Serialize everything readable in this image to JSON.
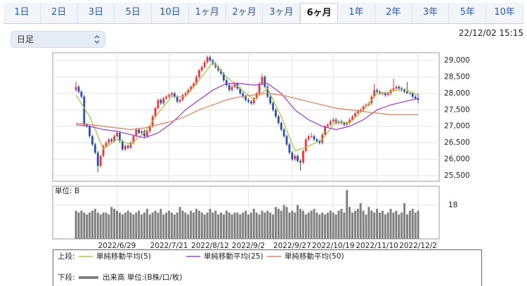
{
  "tabs": {
    "items": [
      "1日",
      "2日",
      "3日",
      "5日",
      "10日",
      "1ヶ月",
      "2ヶ月",
      "3ヶ月",
      "6ヶ月",
      "1年",
      "2年",
      "3年",
      "5年",
      "10年"
    ],
    "selected": 8
  },
  "controls": {
    "interval": "日足",
    "timestamp": "22/12/02 15:15"
  },
  "chart_data": [
    {
      "type": "candlestick",
      "legend_label": "上段:",
      "up_color": "#e8383d",
      "down_color": "#2a4fb0",
      "xlim": [
        -8.5,
        132.7
      ],
      "ylim": [
        25330,
        29235
      ],
      "yticks": [
        {
          "value": 25500,
          "label": "25,500"
        },
        {
          "value": 26000,
          "label": "26,000"
        },
        {
          "value": 26500,
          "label": "26,500"
        },
        {
          "value": 27000,
          "label": "27,000"
        },
        {
          "value": 27500,
          "label": "27,500"
        },
        {
          "value": 28000,
          "label": "28,000"
        },
        {
          "value": 28500,
          "label": "28,500"
        },
        {
          "value": 29000,
          "label": "29,000"
        }
      ],
      "grid": true,
      "candles": [
        [
          28100,
          28350,
          28050,
          28200
        ],
        [
          28200,
          28250,
          28000,
          28050
        ],
        [
          28050,
          28100,
          27850,
          27900
        ],
        [
          27900,
          27950,
          27000,
          27050
        ],
        [
          27050,
          27100,
          26950,
          27000
        ],
        [
          27000,
          27050,
          26650,
          26700
        ],
        [
          26700,
          26750,
          26400,
          26450
        ],
        [
          26450,
          26500,
          26150,
          26200
        ],
        [
          26200,
          26250,
          25600,
          25800
        ],
        [
          25800,
          26150,
          25750,
          26100
        ],
        [
          26100,
          26450,
          26050,
          26400
        ],
        [
          26400,
          26550,
          26350,
          26500
        ],
        [
          26500,
          26650,
          26450,
          26600
        ],
        [
          26600,
          26650,
          26500,
          26550
        ],
        [
          26550,
          26750,
          26500,
          26700
        ],
        [
          26700,
          26850,
          26650,
          26800
        ],
        [
          26800,
          26850,
          26500,
          26550
        ],
        [
          26550,
          26600,
          26250,
          26300
        ],
        [
          26300,
          26450,
          26250,
          26400
        ],
        [
          26400,
          26450,
          26300,
          26350
        ],
        [
          26350,
          26550,
          26300,
          26500
        ],
        [
          26500,
          26750,
          26450,
          26700
        ],
        [
          26700,
          26950,
          26650,
          26900
        ],
        [
          26900,
          26950,
          26750,
          26800
        ],
        [
          26800,
          26900,
          26750,
          26850
        ],
        [
          26850,
          26900,
          26650,
          26700
        ],
        [
          26700,
          26900,
          26650,
          26850
        ],
        [
          26850,
          27050,
          26800,
          27000
        ],
        [
          27000,
          27350,
          26950,
          27300
        ],
        [
          27300,
          27600,
          27250,
          27550
        ],
        [
          27550,
          27850,
          27500,
          27800
        ],
        [
          27800,
          27850,
          27650,
          27700
        ],
        [
          27700,
          27900,
          27650,
          27850
        ],
        [
          27850,
          27950,
          27800,
          27900
        ],
        [
          27900,
          28000,
          27850,
          27950
        ],
        [
          27950,
          28050,
          27900,
          28000
        ],
        [
          28000,
          28050,
          27850,
          27900
        ],
        [
          27900,
          27950,
          27700,
          27750
        ],
        [
          27750,
          27850,
          27700,
          27800
        ],
        [
          27800,
          28000,
          27750,
          27950
        ],
        [
          27950,
          28050,
          27900,
          28000
        ],
        [
          28000,
          28150,
          27950,
          28100
        ],
        [
          28100,
          28250,
          28050,
          28200
        ],
        [
          28200,
          28350,
          28150,
          28300
        ],
        [
          28300,
          28550,
          28250,
          28500
        ],
        [
          28500,
          28750,
          28450,
          28700
        ],
        [
          28700,
          28850,
          28650,
          28800
        ],
        [
          28800,
          29000,
          28750,
          28950
        ],
        [
          28950,
          29150,
          28900,
          29100
        ],
        [
          29100,
          29150,
          28950,
          29000
        ],
        [
          29000,
          29050,
          28850,
          28900
        ],
        [
          28900,
          28950,
          28750,
          28800
        ],
        [
          28800,
          28850,
          28650,
          28700
        ],
        [
          28700,
          28750,
          28550,
          28600
        ],
        [
          28600,
          28650,
          28350,
          28400
        ],
        [
          28400,
          28450,
          28200,
          28250
        ],
        [
          28250,
          28300,
          28050,
          28100
        ],
        [
          28100,
          28250,
          28050,
          28200
        ],
        [
          28200,
          28350,
          28150,
          28300
        ],
        [
          28300,
          28350,
          28100,
          28150
        ],
        [
          28150,
          28200,
          27950,
          28000
        ],
        [
          28000,
          28050,
          27850,
          27900
        ],
        [
          27900,
          27950,
          27750,
          27800
        ],
        [
          27800,
          27850,
          27700,
          27750
        ],
        [
          27750,
          27800,
          27650,
          27700
        ],
        [
          27700,
          27900,
          27650,
          27850
        ],
        [
          27850,
          28050,
          27800,
          28000
        ],
        [
          28000,
          28350,
          27950,
          28300
        ],
        [
          28300,
          28600,
          28250,
          28500
        ],
        [
          28500,
          28550,
          28150,
          28200
        ],
        [
          28200,
          28250,
          27850,
          27900
        ],
        [
          27900,
          27950,
          27650,
          27700
        ],
        [
          27700,
          27750,
          27450,
          27500
        ],
        [
          27500,
          27550,
          27250,
          27300
        ],
        [
          27300,
          27350,
          27050,
          27100
        ],
        [
          27100,
          27150,
          26850,
          26900
        ],
        [
          26900,
          26950,
          26650,
          26700
        ],
        [
          26700,
          26750,
          26400,
          26450
        ],
        [
          26450,
          26500,
          26150,
          26200
        ],
        [
          26200,
          26250,
          25950,
          26000
        ],
        [
          26000,
          26150,
          25950,
          26100
        ],
        [
          26100,
          26150,
          25900,
          25950
        ],
        [
          25950,
          26000,
          25650,
          25900
        ],
        [
          25900,
          26300,
          25850,
          26250
        ],
        [
          26250,
          26650,
          26200,
          26600
        ],
        [
          26600,
          26750,
          26550,
          26700
        ],
        [
          26700,
          26800,
          26650,
          26700
        ],
        [
          26700,
          26750,
          26550,
          26600
        ],
        [
          26600,
          26650,
          26500,
          26550
        ],
        [
          26550,
          26600,
          26450,
          26500
        ],
        [
          26500,
          26800,
          26450,
          26750
        ],
        [
          26750,
          27050,
          26700,
          27000
        ],
        [
          27000,
          27100,
          26950,
          27050
        ],
        [
          27050,
          27200,
          27000,
          27150
        ],
        [
          27150,
          27250,
          27100,
          27200
        ],
        [
          27200,
          27250,
          27050,
          27100
        ],
        [
          27100,
          27200,
          27050,
          27150
        ],
        [
          27150,
          27200,
          27050,
          27100
        ],
        [
          27100,
          27150,
          27000,
          27050
        ],
        [
          27050,
          27150,
          27000,
          27100
        ],
        [
          27100,
          27250,
          27050,
          27200
        ],
        [
          27200,
          27350,
          27150,
          27300
        ],
        [
          27300,
          27450,
          27250,
          27400
        ],
        [
          27400,
          27500,
          27350,
          27450
        ],
        [
          27450,
          27550,
          27400,
          27500
        ],
        [
          27500,
          27650,
          27450,
          27600
        ],
        [
          27600,
          27700,
          27550,
          27650
        ],
        [
          27650,
          27750,
          27600,
          27700
        ],
        [
          27700,
          27950,
          27650,
          27900
        ],
        [
          27900,
          28300,
          27850,
          28100
        ],
        [
          28100,
          28150,
          28000,
          28050
        ],
        [
          28050,
          28100,
          27950,
          28000
        ],
        [
          28000,
          28050,
          27950,
          28000
        ],
        [
          28000,
          28050,
          27900,
          27950
        ],
        [
          27950,
          28050,
          27900,
          28000
        ],
        [
          28000,
          28150,
          27950,
          28100
        ],
        [
          28100,
          28450,
          28050,
          28150
        ],
        [
          28150,
          28250,
          28100,
          28200
        ],
        [
          28200,
          28250,
          28100,
          28150
        ],
        [
          28150,
          28200,
          28050,
          28100
        ],
        [
          28100,
          28150,
          28000,
          28050
        ],
        [
          28050,
          28350,
          28000,
          28000
        ],
        [
          28000,
          28050,
          27950,
          28000
        ],
        [
          28000,
          28050,
          27850,
          27900
        ],
        [
          27900,
          27950,
          27800,
          27850
        ],
        [
          27850,
          28000,
          27700,
          27800
        ]
      ],
      "series": [
        {
          "name": "単純移動平均(5)",
          "color": "#a5c83c",
          "x": [
            0,
            5,
            10,
            15,
            20,
            25,
            30,
            35,
            40,
            45,
            50,
            55,
            60,
            65,
            70,
            75,
            80,
            85,
            90,
            95,
            100,
            105,
            110,
            115,
            120,
            125
          ],
          "values": [
            27950,
            27300,
            26300,
            26600,
            26450,
            26800,
            27400,
            27900,
            27900,
            28400,
            28950,
            28500,
            28150,
            27800,
            28150,
            27300,
            26250,
            26400,
            26600,
            27150,
            27100,
            27500,
            28000,
            28050,
            28130,
            27950
          ]
        },
        {
          "name": "単純移動平均(25)",
          "color": "#a146d4",
          "x": [
            0,
            5,
            10,
            15,
            20,
            25,
            30,
            35,
            40,
            45,
            50,
            55,
            60,
            65,
            70,
            75,
            80,
            85,
            90,
            95,
            100,
            105,
            110,
            115,
            120,
            125
          ],
          "values": [
            27050,
            27000,
            26900,
            26850,
            26750,
            26650,
            26800,
            27100,
            27500,
            27800,
            28100,
            28300,
            28300,
            28250,
            28300,
            28000,
            27500,
            27200,
            27000,
            26900,
            27000,
            27200,
            27500,
            27650,
            27750,
            27850
          ]
        },
        {
          "name": "単純移動平均(50)",
          "color": "#e3845e",
          "x": [
            0,
            5,
            10,
            15,
            20,
            25,
            30,
            35,
            40,
            45,
            50,
            55,
            60,
            65,
            70,
            75,
            80,
            85,
            90,
            95,
            100,
            105,
            110,
            115,
            120,
            125
          ],
          "values": [
            27100,
            27050,
            27000,
            26950,
            26900,
            26950,
            27050,
            27150,
            27300,
            27500,
            27650,
            27800,
            27900,
            27950,
            28000,
            27950,
            27850,
            27750,
            27650,
            27550,
            27500,
            27450,
            27400,
            27350,
            27350,
            27350
          ]
        }
      ]
    },
    {
      "type": "bar",
      "legend_label": "下段:",
      "name": "出来高 単位:(B株/口/枚)",
      "unit_label": "単位: B",
      "color": "#808080",
      "xlim": [
        -8.5,
        132.7
      ],
      "ylim": [
        0,
        28
      ],
      "yticks": [
        18
      ],
      "xticks": [
        {
          "value": 15,
          "label": "2022/6/29"
        },
        {
          "value": 34,
          "label": "2022/7/21"
        },
        {
          "value": 49,
          "label": "2022/8/12"
        },
        {
          "value": 63,
          "label": "2022/9/2"
        },
        {
          "value": 79,
          "label": "2022/9/27"
        },
        {
          "value": 94,
          "label": "2022/10/19"
        },
        {
          "value": 110,
          "label": "2022/11/10"
        },
        {
          "value": 125,
          "label": "2022/12/2"
        }
      ],
      "values": [
        15,
        14,
        15,
        14,
        13,
        14,
        15,
        16,
        14,
        13,
        14,
        14,
        13,
        17,
        16,
        15,
        14,
        13,
        14,
        15,
        14,
        13,
        14,
        15,
        13,
        14,
        16,
        13,
        14,
        15,
        14,
        16,
        13,
        14,
        15,
        14,
        13,
        14,
        17,
        15,
        14,
        13,
        15,
        14,
        16,
        15,
        14,
        13,
        14,
        16,
        14,
        15,
        13,
        14,
        13,
        15,
        14,
        13,
        14,
        14,
        13,
        14,
        15,
        13,
        14,
        16,
        14,
        13,
        15,
        14,
        15,
        14,
        13,
        17,
        16,
        15,
        18,
        17,
        14,
        15,
        14,
        18,
        16,
        15,
        13,
        14,
        15,
        16,
        14,
        13,
        14,
        13,
        14,
        15,
        14,
        13,
        15,
        16,
        14,
        26,
        17,
        14,
        15,
        16,
        19,
        15,
        13,
        17,
        15,
        14,
        16,
        14,
        15,
        13,
        14,
        16,
        14,
        15,
        13,
        14,
        19,
        13,
        15,
        16,
        14,
        15
      ]
    }
  ]
}
